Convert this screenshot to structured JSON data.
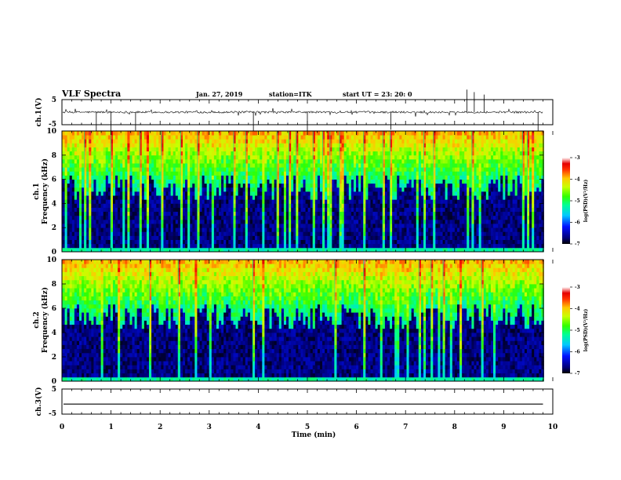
{
  "header": {
    "title": "VLF Spectra",
    "date": "Jan. 27, 2019",
    "station": "station=ITK",
    "start": "start  UT =   23: 20: 0"
  },
  "chart_data": [
    {
      "type": "line",
      "name": "ch1-waveform",
      "ylabel": "ch.1(V)",
      "ylim": [
        -5,
        5
      ],
      "yticks": [
        "5",
        "-5"
      ],
      "baseline": 0
    },
    {
      "type": "heatmap",
      "name": "ch1-spectrogram",
      "ylabel_line1": "ch.1",
      "ylabel_line2": "Frequency  (kHz)",
      "ylim": [
        0,
        10
      ],
      "yticks": [
        "0",
        "2",
        "4",
        "6",
        "8",
        "10"
      ],
      "colorbar": {
        "label": "log(PSD)(V²/Hz)",
        "range": [
          -7,
          -3
        ],
        "ticks": [
          "-3",
          "-4",
          "-5",
          "-6",
          "-7"
        ]
      }
    },
    {
      "type": "heatmap",
      "name": "ch2-spectrogram",
      "ylabel_line1": "ch.2",
      "ylabel_line2": "Frequency  (kHz)",
      "ylim": [
        0,
        10
      ],
      "yticks": [
        "0",
        "2",
        "4",
        "6",
        "8",
        "10"
      ],
      "colorbar": {
        "label": "log(PSD)(V²/Hz)",
        "range": [
          -7,
          -3
        ],
        "ticks": [
          "-3",
          "-4",
          "-5",
          "-6",
          "-7"
        ]
      }
    },
    {
      "type": "line",
      "name": "ch3-waveform",
      "ylabel": "ch.3(V)",
      "ylim": [
        -5,
        5
      ],
      "yticks": [
        "5",
        "-5"
      ],
      "baseline": -1
    }
  ],
  "xaxis": {
    "label": "Time  (min)",
    "xlim": [
      0,
      10
    ],
    "ticks": [
      "0",
      "1",
      "2",
      "3",
      "4",
      "5",
      "6",
      "7",
      "8",
      "9",
      "10"
    ],
    "data_end": 9.8
  }
}
